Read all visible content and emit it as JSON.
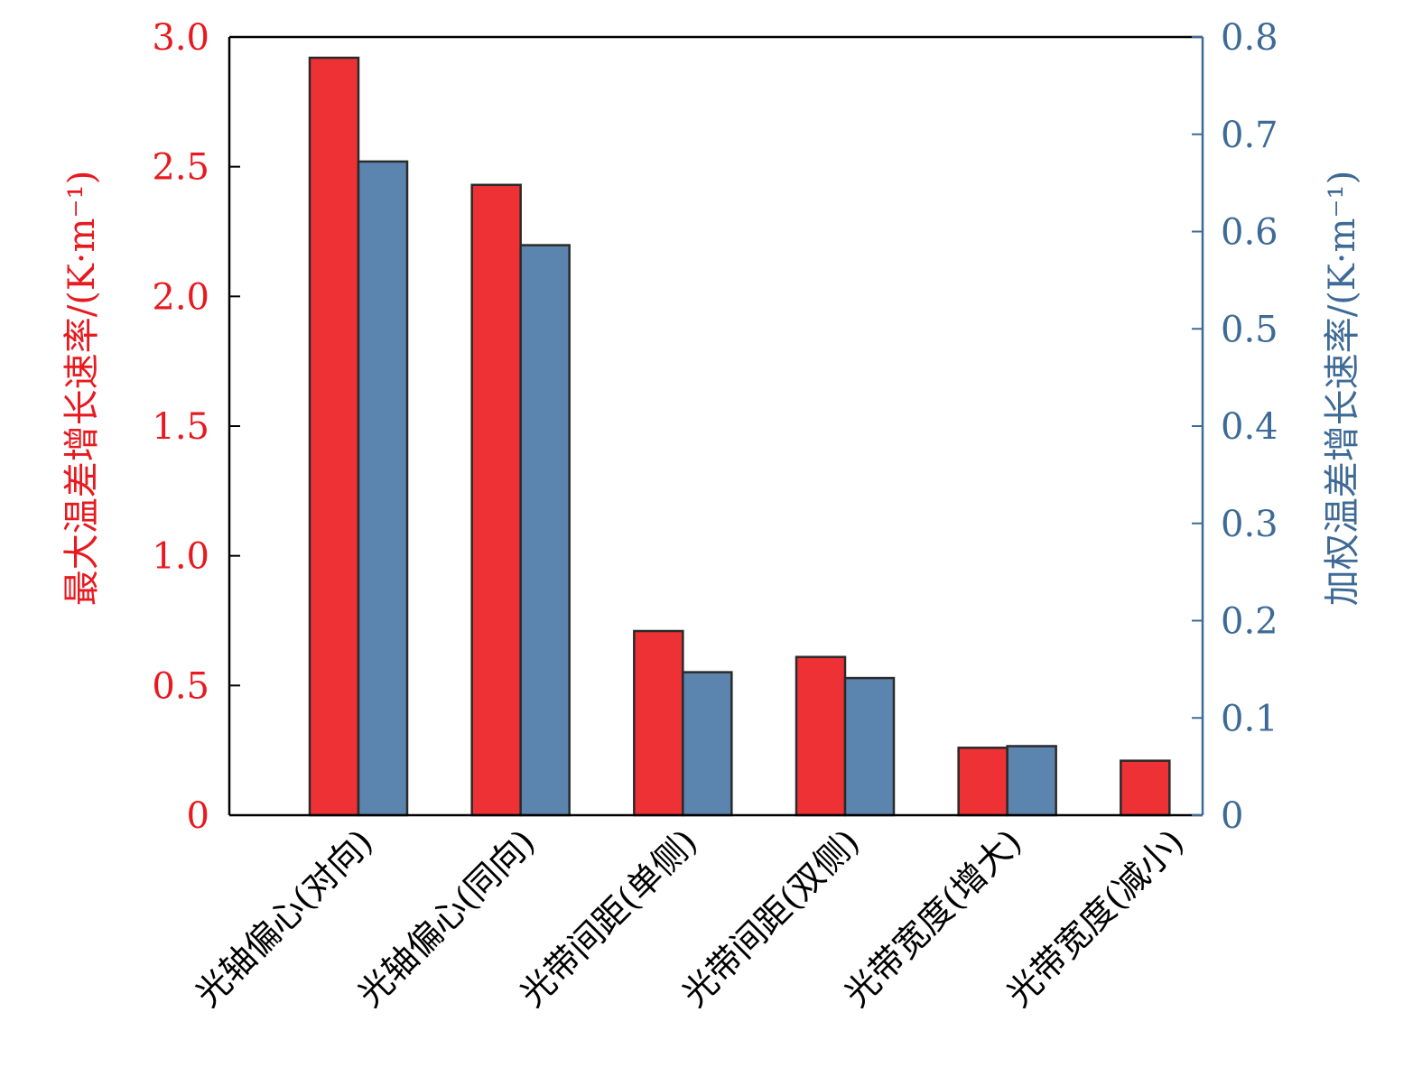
{
  "chart_data": {
    "type": "bar",
    "categories": [
      "光轴偏心(对向)",
      "光轴偏心(同向)",
      "光带间距(单侧)",
      "光带间距(双侧)",
      "光带宽度(增大)",
      "光带宽度(减小)"
    ],
    "series": [
      {
        "name": "最大温差增长速率",
        "axis": "left",
        "color": "#ee3135",
        "values": [
          2.92,
          2.43,
          0.71,
          0.61,
          0.26,
          0.21
        ]
      },
      {
        "name": "加权温差增长速率",
        "axis": "right",
        "color": "#5b85ae",
        "values": [
          0.672,
          0.586,
          0.147,
          0.141,
          0.071,
          null
        ]
      }
    ],
    "y_left": {
      "label": "最大温差增长速率/(K·m⁻¹)",
      "ylim": [
        0,
        3.0
      ],
      "ticks": [
        0,
        0.5,
        1.0,
        1.5,
        2.0,
        2.5,
        3.0
      ],
      "tick_labels": [
        "0",
        "0.5",
        "1.0",
        "1.5",
        "2.0",
        "2.5",
        "3.0"
      ],
      "color": "#e8191f"
    },
    "y_right": {
      "label": "加权温差增长速率/(K·m⁻¹)",
      "ylim": [
        0,
        0.8
      ],
      "ticks": [
        0,
        0.1,
        0.2,
        0.3,
        0.4,
        0.5,
        0.6,
        0.7,
        0.8
      ],
      "tick_labels": [
        "0",
        "0.1",
        "0.2",
        "0.3",
        "0.4",
        "0.5",
        "0.6",
        "0.7",
        "0.8"
      ],
      "color": "#3e6a96"
    },
    "grid": false,
    "legend": "none"
  }
}
